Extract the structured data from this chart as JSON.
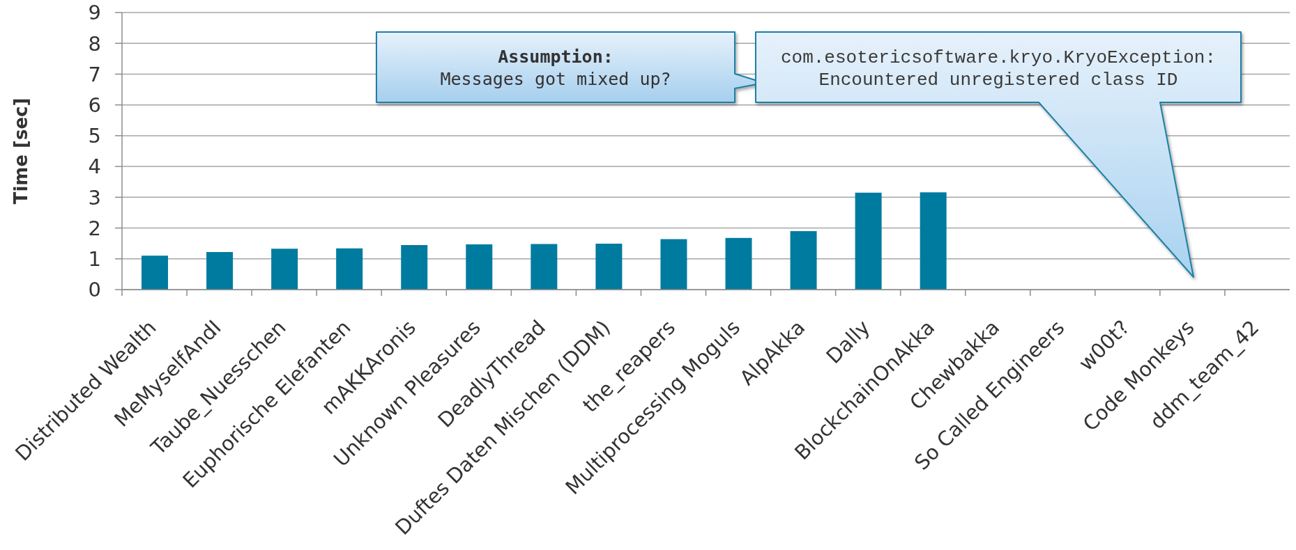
{
  "chart_data": {
    "type": "bar",
    "ylabel": "Time [sec]",
    "categories": [
      "Distributed Wealth",
      "MeMyselfAndI",
      "Taube_Nuesschen",
      "Euphorische Elefanten",
      "mAKKAronis",
      "Unknown Pleasures",
      "DeadlyThread",
      "Duftes Daten Mischen (DDM)",
      "the_reapers",
      "Multiprocessing Moguls",
      "AlpAkka",
      "Dally",
      "BlockchainOnAkka",
      "Chewbakka",
      "So Called Engineers",
      "w00t?",
      "Code Monkeys",
      "ddm_team_42"
    ],
    "values": [
      1.1,
      1.22,
      1.33,
      1.34,
      1.45,
      1.47,
      1.48,
      1.49,
      1.64,
      1.68,
      1.9,
      3.15,
      3.16,
      null,
      null,
      null,
      null,
      null
    ],
    "color": "#007ba0",
    "ylim": [
      0,
      9
    ],
    "yticks": [
      0,
      1,
      2,
      3,
      4,
      5,
      6,
      7,
      8,
      9
    ],
    "grid": "y",
    "annotations": [
      "Assumption:\nMessages got mixed up?",
      "com.esotericsoftware.kryo.KryoException:\nEncountered unregistered class ID"
    ]
  }
}
